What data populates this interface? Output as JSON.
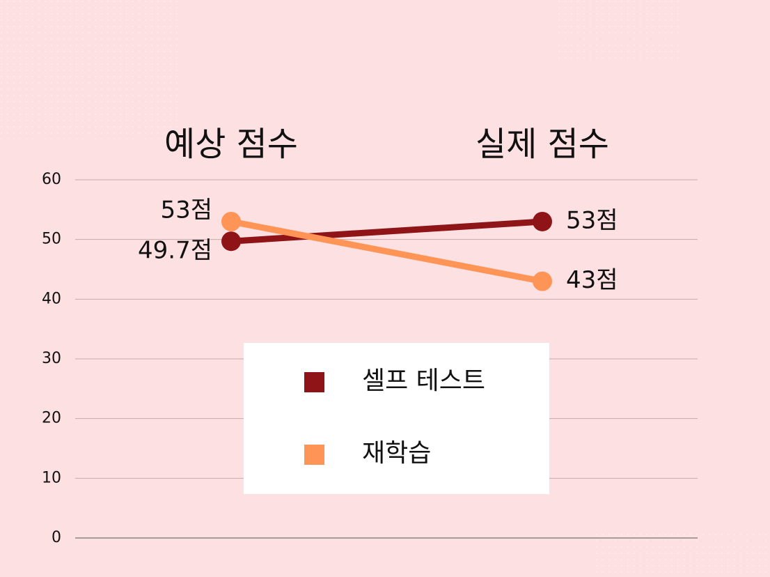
{
  "chart_data": {
    "type": "line",
    "categories": [
      "예상 점수",
      "실제 점수"
    ],
    "series": [
      {
        "name": "셀프 테스트",
        "color": "#8f1418",
        "values": [
          49.7,
          53
        ],
        "value_labels": [
          "49.7점",
          "53점"
        ]
      },
      {
        "name": "재학습",
        "color": "#ff9457",
        "values": [
          53,
          43
        ],
        "value_labels": [
          "53점",
          "43점"
        ]
      }
    ],
    "ylim": [
      0,
      60
    ],
    "yticks": [
      0,
      10,
      20,
      30,
      40,
      50,
      60
    ],
    "grid": true
  }
}
